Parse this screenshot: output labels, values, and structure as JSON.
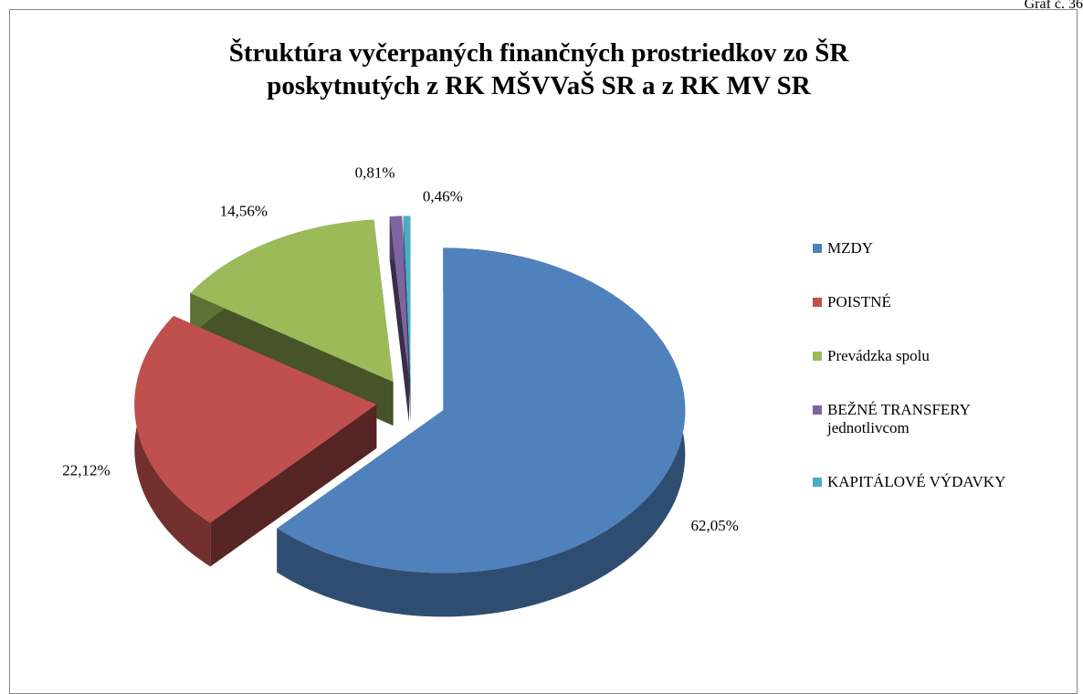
{
  "chart_data": {
    "type": "pie",
    "corner_label": "Graf č. 36",
    "title": "Štruktúra vyčerpaných finančných prostriedkov zo ŠR poskytnutých z RK MŠVVaŠ SR a z RK MV SR",
    "categories": [
      "MZDY",
      "POISTNÉ",
      "Prevádzka spolu",
      "BEŽNÉ TRANSFERY jednotlivcom",
      "KAPITÁLOVÉ VÝDAVKY"
    ],
    "values": [
      62.05,
      22.12,
      14.56,
      0.81,
      0.46
    ],
    "value_labels": [
      "62,05%",
      "22,12%",
      "14,56%",
      "0,81%",
      "0,46%"
    ],
    "colors": [
      "#4f81bd",
      "#c0504d",
      "#9bbb59",
      "#8064a2",
      "#4bacc6"
    ],
    "legend": "right"
  }
}
